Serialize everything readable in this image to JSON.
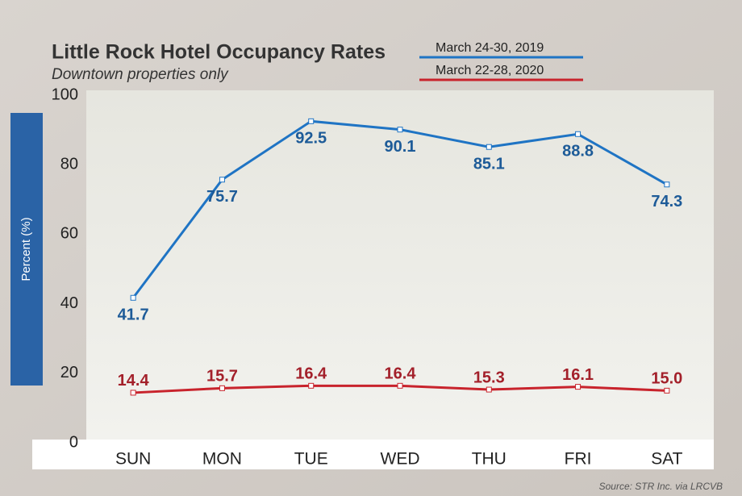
{
  "chart_data": {
    "type": "line",
    "title": "Little Rock Hotel Occupancy Rates",
    "subtitle": "Downtown properties only",
    "y_label": "Percent (%)",
    "source": "Source: STR Inc. via LRCVB",
    "categories": [
      "SUN",
      "MON",
      "TUE",
      "WED",
      "THU",
      "FRI",
      "SAT"
    ],
    "series": [
      {
        "name": "March 24-30, 2019",
        "color": "#1f74c4",
        "values": [
          41.7,
          75.7,
          92.5,
          90.1,
          85.1,
          88.8,
          74.3
        ],
        "value_labels": [
          "41.7",
          "75.7",
          "92.5",
          "90.1",
          "85.1",
          "88.8",
          "74.3"
        ]
      },
      {
        "name": "March 22-28, 2020",
        "color": "#c8232c",
        "values": [
          14.4,
          15.7,
          16.4,
          16.4,
          15.3,
          16.1,
          15.0
        ],
        "value_labels": [
          "14.4",
          "15.7",
          "16.4",
          "16.4",
          "15.3",
          "16.1",
          "15.0"
        ]
      }
    ],
    "ylim": [
      0,
      100
    ],
    "yticks": [
      0,
      20,
      40,
      60,
      80,
      100
    ]
  }
}
